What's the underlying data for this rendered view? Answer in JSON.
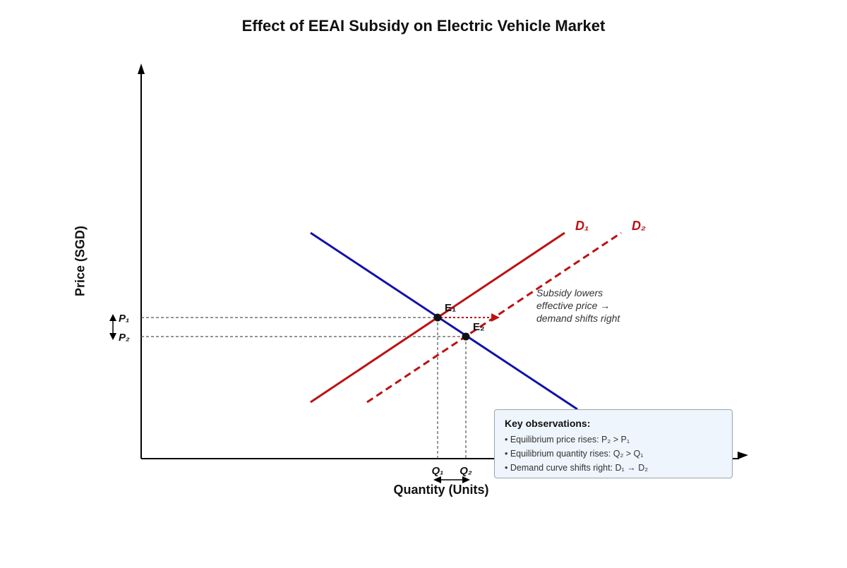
{
  "title": "Effect of EEAI Subsidy on Electric Vehicle Market",
  "axes": {
    "y_label": "Price (SGD)",
    "x_label": "Quantity (Units)"
  },
  "curves": {
    "d1_label": "D₁",
    "d2_label": "D₂"
  },
  "points": {
    "e1_label": "E₁",
    "e2_label": "E₂"
  },
  "ticks": {
    "p1": "P₁",
    "p2": "P₂",
    "q1": "Q₁",
    "q2": "Q₂"
  },
  "annotation": [
    "Subsidy lowers",
    "effective price →",
    "demand shifts right"
  ],
  "observations": {
    "title": "Key observations:",
    "items": [
      "• Equilibrium price rises: P₂ > P₁",
      "• Equilibrium quantity rises: Q₂ > Q₁",
      "• Demand curve shifts right: D₁ → D₂"
    ]
  },
  "colors": {
    "supply_line": "#1111aa",
    "demand_lines": "#bb1111",
    "axes": "#000000",
    "box_background": "#eef5fc"
  }
}
